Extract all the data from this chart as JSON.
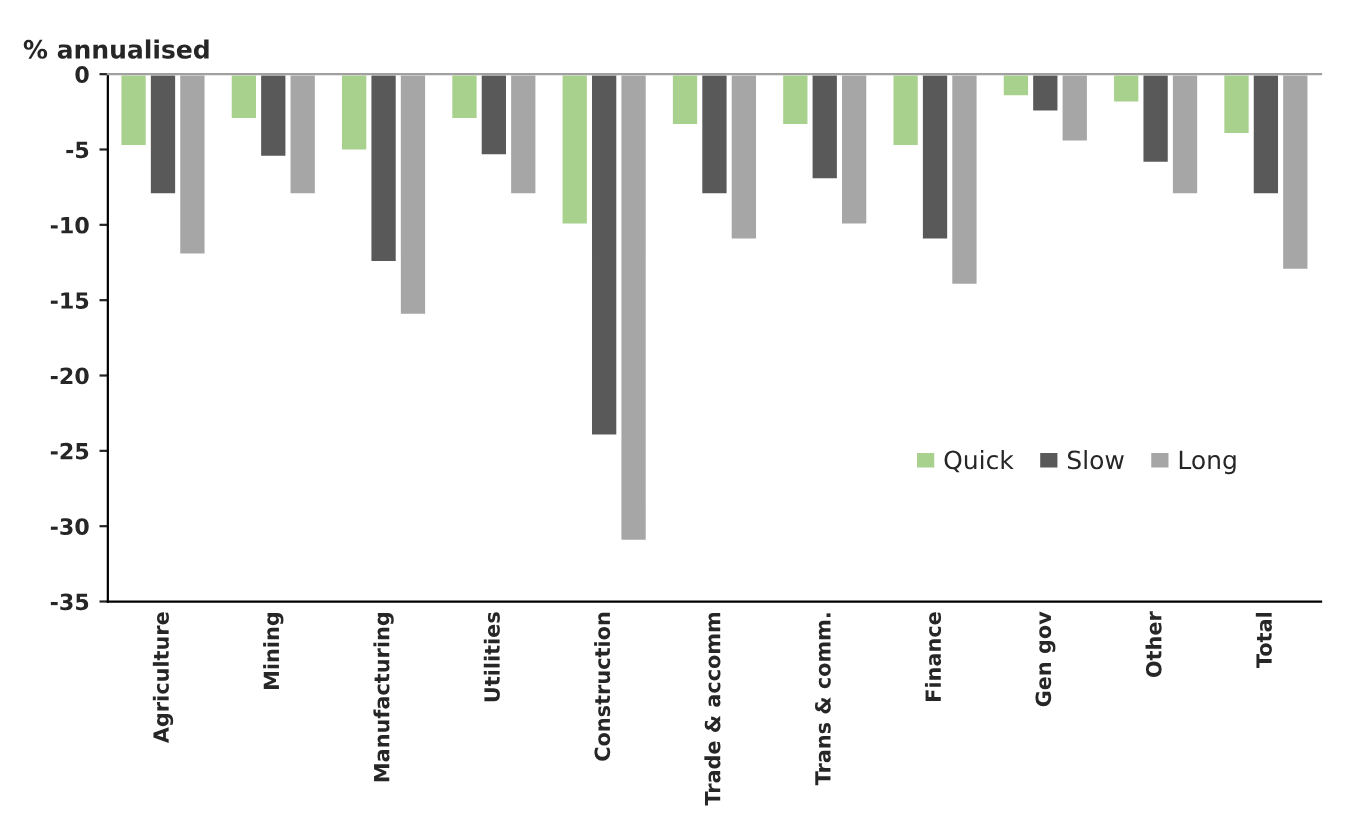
{
  "chart_data": {
    "type": "bar",
    "ylabel": "% annualised",
    "categories": [
      "Agriculture",
      "Mining",
      "Manufacturing",
      "Utilities",
      "Construction",
      "Trade & accomm",
      "Trans & comm.",
      "Finance",
      "Gen gov",
      "Other",
      "Total"
    ],
    "series": [
      {
        "name": "Quick",
        "color": "#a9d18e",
        "values": [
          -4.8,
          -3,
          -5.1,
          -3,
          -10,
          -3.4,
          -3.4,
          -4.8,
          -1.5,
          -1.9,
          -4
        ]
      },
      {
        "name": "Slow",
        "color": "#595959",
        "values": [
          -8,
          -5.5,
          -12.5,
          -5.4,
          -24,
          -8,
          -7,
          -11,
          -2.5,
          -5.9,
          -8
        ]
      },
      {
        "name": "Long",
        "color": "#a6a6a6",
        "values": [
          -12,
          -8,
          -16,
          -8,
          -31,
          -11,
          -10,
          -14,
          -4.5,
          -8,
          -13
        ]
      }
    ],
    "ylim": [
      -35,
      0
    ],
    "yticks": [
      0,
      -5,
      -10,
      -15,
      -20,
      -25,
      -30,
      -35
    ],
    "grid": false,
    "legend": "bottom right"
  }
}
